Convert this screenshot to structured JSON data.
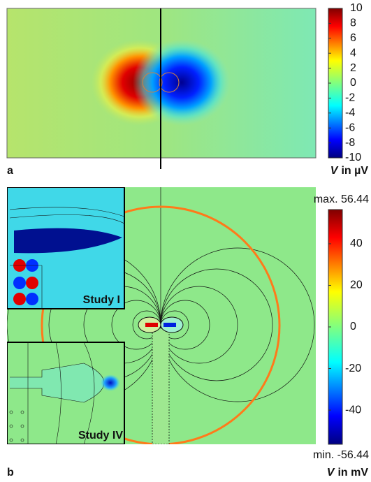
{
  "chart_data": [
    {
      "type": "heatmap",
      "panel_label": "a",
      "unit_symbol": "V",
      "unit_text": "in µV",
      "clim": [
        -10,
        10
      ],
      "cticks": [
        10,
        8,
        6,
        4,
        2,
        0,
        -2,
        -4,
        -6,
        -8,
        -10
      ]
    },
    {
      "type": "heatmap",
      "panel_label": "b",
      "unit_symbol": "V",
      "unit_text": "in mV",
      "clim": [
        -56.44,
        56.44
      ],
      "cticks": [
        {
          "value": 56.44,
          "label": "max. 56.44"
        },
        40,
        20,
        0,
        -20,
        -40,
        {
          "value": -56.44,
          "label": "min. -56.44"
        }
      ],
      "insets": [
        "Study I",
        "Study IV"
      ]
    }
  ]
}
